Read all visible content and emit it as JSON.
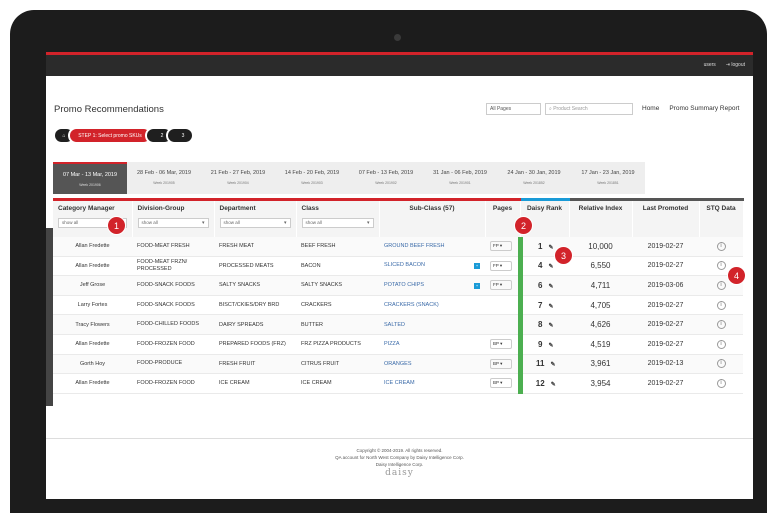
{
  "topbar": {
    "users": "users",
    "logout": "⇥ logout"
  },
  "page_title": "Promo Recommendations",
  "pages_select": "All Pages",
  "search_placeholder": "⌕ Product Search",
  "nav": {
    "home": "Home",
    "summary": "Promo Summary Report"
  },
  "steps": {
    "home_icon": "⌂",
    "step1": "STEP 1: Select promo SKUs",
    "step2": "2",
    "step3": "3"
  },
  "weeks": [
    {
      "range": "07 Mar - 13 Mar, 2019",
      "week": "Week 201906"
    },
    {
      "range": "28 Feb - 06 Mar, 2019",
      "week": "Week 201905"
    },
    {
      "range": "21 Feb - 27 Feb, 2019",
      "week": "Week 201904"
    },
    {
      "range": "14 Feb - 20 Feb, 2019",
      "week": "Week 201903"
    },
    {
      "range": "07 Feb - 13 Feb, 2019",
      "week": "Week 201902"
    },
    {
      "range": "31 Jan - 06 Feb, 2019",
      "week": "Week 201901"
    },
    {
      "range": "24 Jan - 30 Jan, 2019",
      "week": "Week 201852"
    },
    {
      "range": "17 Jan - 23 Jan, 2019",
      "week": "Week 201851"
    }
  ],
  "columns": {
    "manager": "Category Manager",
    "division": "Division-Group",
    "department": "Department",
    "class": "Class",
    "subclass": "Sub-Class (57)",
    "pages": "Pages",
    "rank": "Daisy Rank",
    "relidx": "Relative Index",
    "last": "Last Promoted",
    "stq": "STQ Data"
  },
  "filter_text": "show all",
  "rows": [
    {
      "manager": "Allan Fredette",
      "division": "FOOD-MEAT FRESH",
      "department": "FRESH MEAT",
      "class": "BEEF FRESH",
      "subclass": "GROUND BEEF FRESH",
      "page": "FP",
      "rank": "1",
      "relidx": "10,000",
      "last": "2019-02-27"
    },
    {
      "manager": "Allan Fredette",
      "division": "FOOD-MEAT FRZN/ PROCESSED",
      "department": "PROCESSED MEATS",
      "class": "BACON",
      "subclass": "SLICED BACON",
      "page": "FP",
      "rank": "4",
      "relidx": "6,550",
      "last": "2019-02-27"
    },
    {
      "manager": "Jeff Grose",
      "division": "FOOD-SNACK FOODS",
      "department": "SALTY SNACKS",
      "class": "SALTY SNACKS",
      "subclass": "POTATO CHIPS",
      "page": "FP",
      "rank": "6",
      "relidx": "4,711",
      "last": "2019-03-06"
    },
    {
      "manager": "Larry Fortes",
      "division": "FOOD-SNACK FOODS",
      "department": "BISCT/CKIES/DRY BRD",
      "class": "CRACKERS",
      "subclass": "CRACKERS (SNACK)",
      "page": "",
      "rank": "7",
      "relidx": "4,705",
      "last": "2019-02-27"
    },
    {
      "manager": "Tracy Flowers",
      "division": "FOOD-CHILLED FOODS",
      "department": "DAIRY SPREADS",
      "class": "BUTTER",
      "subclass": "SALTED",
      "page": "",
      "rank": "8",
      "relidx": "4,626",
      "last": "2019-02-27"
    },
    {
      "manager": "Allan Fredette",
      "division": "FOOD-FROZEN FOOD",
      "department": "PREPARED FOODS (FRZ)",
      "class": "FRZ PIZZA PRODUCTS",
      "subclass": "PIZZA",
      "page": "BP",
      "rank": "9",
      "relidx": "4,519",
      "last": "2019-02-27"
    },
    {
      "manager": "Gorth Hoy",
      "division": "FOOD-PRODUCE",
      "department": "FRESH FRUIT",
      "class": "CITRUS FRUIT",
      "subclass": "ORANGES",
      "page": "BP",
      "rank": "11",
      "relidx": "3,961",
      "last": "2019-02-13"
    },
    {
      "manager": "Allan Fredette",
      "division": "FOOD-FROZEN FOOD",
      "department": "ICE CREAM",
      "class": "ICE CREAM",
      "subclass": "ICE CREAM",
      "page": "BP",
      "rank": "12",
      "relidx": "3,954",
      "last": "2019-02-27"
    }
  ],
  "footer": {
    "copyright": "Copyright © 2004-2019. All rights reserved.",
    "account": "QA account for North West Company by Daisy Intelligence Corp.",
    "company": "Daisy Intelligence Corp.",
    "logo": "daisy"
  },
  "callouts": [
    "1",
    "2",
    "3",
    "4"
  ]
}
